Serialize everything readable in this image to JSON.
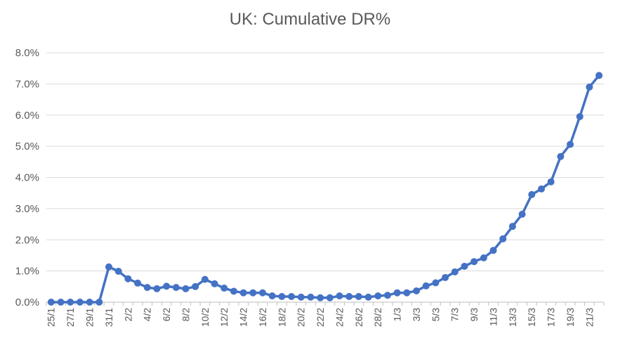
{
  "chart_data": {
    "type": "line",
    "title": "UK: Cumulative DR%",
    "xlabel": "",
    "ylabel": "",
    "ylim": [
      0,
      8
    ],
    "yticks": [
      "0.0%",
      "1.0%",
      "2.0%",
      "3.0%",
      "4.0%",
      "5.0%",
      "6.0%",
      "7.0%",
      "8.0%"
    ],
    "grid": true,
    "legend": "none",
    "color": "#4472C4",
    "x": [
      "25/1",
      "26/1",
      "27/1",
      "28/1",
      "29/1",
      "30/1",
      "31/1",
      "1/2",
      "2/2",
      "3/2",
      "4/2",
      "5/2",
      "6/2",
      "7/2",
      "8/2",
      "9/2",
      "10/2",
      "11/2",
      "12/2",
      "13/2",
      "14/2",
      "15/2",
      "16/2",
      "17/2",
      "18/2",
      "19/2",
      "20/2",
      "21/2",
      "22/2",
      "23/2",
      "24/2",
      "25/2",
      "26/2",
      "27/2",
      "28/2",
      "29/2",
      "1/3",
      "2/3",
      "3/3",
      "4/3",
      "5/3",
      "6/3",
      "7/3",
      "8/3",
      "9/3",
      "10/3",
      "11/3",
      "12/3",
      "13/3",
      "14/3",
      "15/3",
      "16/3",
      "17/3",
      "18/3",
      "19/3",
      "20/3",
      "21/3",
      "22/3"
    ],
    "x_tick_labels": [
      "25/1",
      "27/1",
      "29/1",
      "31/1",
      "2/2",
      "4/2",
      "6/2",
      "8/2",
      "10/2",
      "12/2",
      "14/2",
      "16/2",
      "18/2",
      "20/2",
      "22/2",
      "24/2",
      "26/2",
      "28/2",
      "1/3",
      "3/3",
      "5/3",
      "7/3",
      "9/3",
      "11/3",
      "13/3",
      "15/3",
      "17/3",
      "19/3",
      "21/3"
    ],
    "series": [
      {
        "values": [
          0,
          0,
          0,
          0,
          0,
          0,
          1.13,
          0.99,
          0.75,
          0.61,
          0.47,
          0.43,
          0.51,
          0.47,
          0.43,
          0.5,
          0.73,
          0.59,
          0.45,
          0.35,
          0.3,
          0.3,
          0.3,
          0.2,
          0.18,
          0.18,
          0.16,
          0.16,
          0.14,
          0.14,
          0.2,
          0.18,
          0.18,
          0.16,
          0.2,
          0.22,
          0.3,
          0.3,
          0.36,
          0.52,
          0.62,
          0.79,
          0.97,
          1.15,
          1.3,
          1.42,
          1.66,
          2.03,
          2.43,
          2.82,
          3.45,
          3.63,
          3.86,
          4.67,
          5.06,
          5.95,
          6.9,
          7.27
        ]
      }
    ]
  }
}
